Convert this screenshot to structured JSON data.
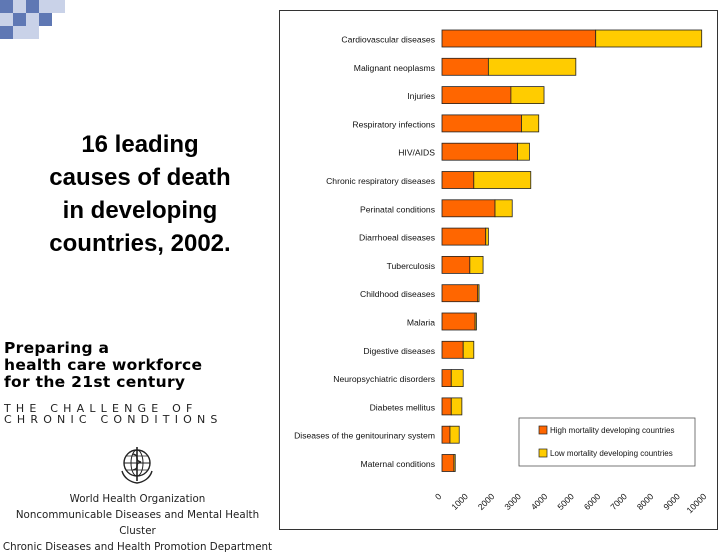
{
  "slide": {
    "title": "16 leading causes of death in developing countries, 2002."
  },
  "book_cover": {
    "title_line1": "Preparing a",
    "title_line2": "health care workforce",
    "title_line3": "for the 21st century",
    "subtitle_line1": "THE CHALLENGE OF",
    "subtitle_line2": "CHRONIC CONDITIONS",
    "org_line1": "World Health Organization",
    "org_line2": "Noncommunicable Diseases and Mental Health Cluster",
    "org_line3": "Chronic Diseases and Health Promotion Department"
  },
  "colors": {
    "high": "#FF6600",
    "low": "#FFCC00",
    "checker_blue": "#5f78b4",
    "checker_light": "#c9d2e8"
  },
  "chart_data": {
    "type": "bar",
    "orientation": "horizontal",
    "stacked": true,
    "title": "",
    "xlabel": "",
    "ylabel": "",
    "xlim": [
      0,
      10000
    ],
    "x_ticks": [
      "0",
      "1000",
      "2000",
      "3000",
      "4000",
      "5000",
      "6000",
      "7000",
      "8000",
      "9000",
      "10000"
    ],
    "categories": [
      "Cardiovascular diseases",
      "Malignant neoplasms",
      "Injuries",
      "Respiratory infections",
      "HIV/AIDS",
      "Chronic respiratory diseases",
      "Perinatal conditions",
      "Diarrhoeal diseases",
      "Tuberculosis",
      "Childhood diseases",
      "Malaria",
      "Digestive diseases",
      "Neuropsychiatric disorders",
      "Diabetes mellitus",
      "Diseases of the genitourinary system",
      "Maternal conditions"
    ],
    "series": [
      {
        "name": "High mortality developing countries",
        "color": "#FF6600",
        "values": [
          5800,
          1750,
          2600,
          3000,
          2850,
          1200,
          2000,
          1650,
          1050,
          1350,
          1250,
          800,
          350,
          350,
          300,
          450
        ]
      },
      {
        "name": "Low mortality developing countries",
        "color": "#FFCC00",
        "values": [
          4000,
          3300,
          1250,
          650,
          450,
          2150,
          650,
          100,
          500,
          50,
          50,
          400,
          450,
          400,
          350,
          50
        ]
      }
    ],
    "legend_position": "bottom-right"
  }
}
